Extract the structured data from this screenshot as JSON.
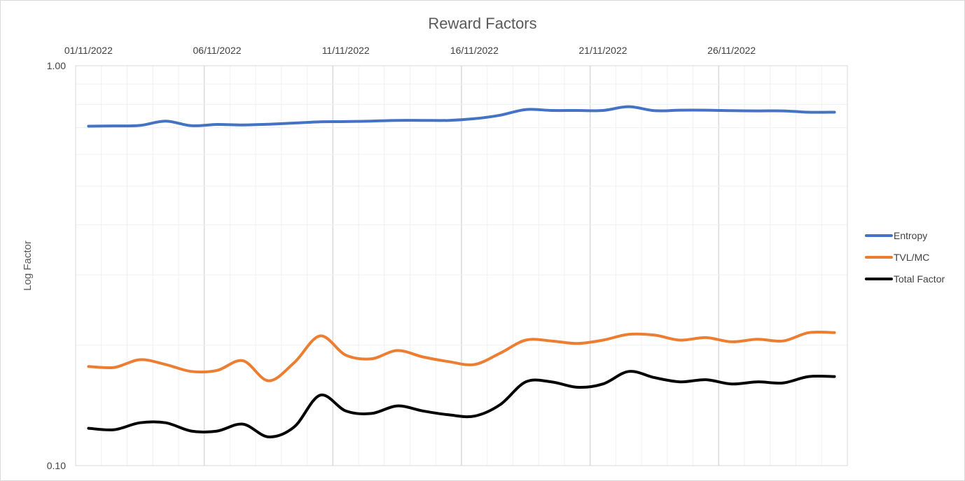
{
  "chart_data": {
    "type": "line",
    "title": "Reward Factors",
    "xlabel": "",
    "ylabel": "Log Factor",
    "y_scale": "log",
    "ylim": [
      0.1,
      1.0
    ],
    "y_ticks": [
      "1.00",
      "0.10"
    ],
    "x_tick_labels": [
      "01/11/2022",
      "06/11/2022",
      "11/11/2022",
      "16/11/2022",
      "21/11/2022",
      "26/11/2022"
    ],
    "x_axis_position": "top",
    "grid": true,
    "legend_position": "right",
    "x": [
      "01/11/2022",
      "02/11/2022",
      "03/11/2022",
      "04/11/2022",
      "05/11/2022",
      "06/11/2022",
      "07/11/2022",
      "08/11/2022",
      "09/11/2022",
      "10/11/2022",
      "11/11/2022",
      "12/11/2022",
      "13/11/2022",
      "14/11/2022",
      "15/11/2022",
      "16/11/2022",
      "17/11/2022",
      "18/11/2022",
      "19/11/2022",
      "20/11/2022",
      "21/11/2022",
      "22/11/2022",
      "23/11/2022",
      "24/11/2022",
      "25/11/2022",
      "26/11/2022",
      "27/11/2022",
      "28/11/2022",
      "29/11/2022",
      "30/11/2022"
    ],
    "series": [
      {
        "name": "Entropy",
        "color": "#4472C4",
        "values": [
          0.706,
          0.707,
          0.709,
          0.727,
          0.708,
          0.713,
          0.711,
          0.714,
          0.719,
          0.724,
          0.725,
          0.727,
          0.73,
          0.73,
          0.73,
          0.737,
          0.752,
          0.777,
          0.773,
          0.773,
          0.773,
          0.79,
          0.772,
          0.774,
          0.774,
          0.772,
          0.771,
          0.771,
          0.765,
          0.765
        ]
      },
      {
        "name": "TVL/MC",
        "color": "#ED7D31",
        "values": [
          0.177,
          0.176,
          0.184,
          0.179,
          0.172,
          0.173,
          0.183,
          0.163,
          0.181,
          0.211,
          0.189,
          0.185,
          0.194,
          0.187,
          0.182,
          0.179,
          0.191,
          0.206,
          0.205,
          0.202,
          0.206,
          0.213,
          0.212,
          0.206,
          0.209,
          0.204,
          0.207,
          0.205,
          0.215,
          0.215
        ]
      },
      {
        "name": "Total Factor",
        "color": "#000000",
        "values": [
          0.124,
          0.123,
          0.128,
          0.128,
          0.122,
          0.122,
          0.127,
          0.118,
          0.125,
          0.15,
          0.137,
          0.135,
          0.141,
          0.137,
          0.134,
          0.133,
          0.142,
          0.162,
          0.162,
          0.157,
          0.16,
          0.172,
          0.166,
          0.162,
          0.164,
          0.16,
          0.162,
          0.161,
          0.167,
          0.167
        ]
      }
    ]
  }
}
